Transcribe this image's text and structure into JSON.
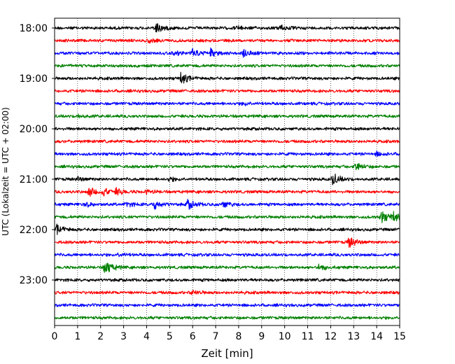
{
  "chart_data": {
    "type": "line",
    "title": "",
    "xlabel": "Zeit  [min]",
    "ylabel": "UTC (Lokalzeit = UTC + 02:00)",
    "xlim": [
      0,
      15
    ],
    "x_ticks": [
      "0",
      "1",
      "2",
      "3",
      "4",
      "5",
      "6",
      "7",
      "8",
      "9",
      "10",
      "11",
      "12",
      "13",
      "14",
      "15"
    ],
    "y_tick_labels": [
      "18:00",
      "19:00",
      "20:00",
      "21:00",
      "22:00",
      "23:00"
    ],
    "grid": "vertical dotted",
    "colors": [
      "#000000",
      "#ff0000",
      "#0000ff",
      "#008000"
    ],
    "traces": [
      {
        "start": "18:00",
        "color": "#000000",
        "events": [
          [
            4.4,
            1.0
          ],
          [
            9.8,
            0.5
          ],
          [
            7.9,
            0.3
          ]
        ]
      },
      {
        "start": "18:15",
        "color": "#ff0000",
        "events": [
          [
            4.1,
            0.3
          ]
        ]
      },
      {
        "start": "18:30",
        "color": "#0000ff",
        "events": [
          [
            6.0,
            0.8
          ],
          [
            6.8,
            0.7
          ],
          [
            8.2,
            0.7
          ],
          [
            5.2,
            0.3
          ]
        ]
      },
      {
        "start": "18:45",
        "color": "#008000",
        "events": []
      },
      {
        "start": "19:00",
        "color": "#000000",
        "events": [
          [
            5.5,
            1.0
          ]
        ]
      },
      {
        "start": "19:15",
        "color": "#ff0000",
        "events": []
      },
      {
        "start": "19:30",
        "color": "#0000ff",
        "events": [
          [
            8.2,
            0.3
          ]
        ]
      },
      {
        "start": "19:45",
        "color": "#008000",
        "events": [
          [
            1.0,
            0.3
          ]
        ]
      },
      {
        "start": "20:00",
        "color": "#000000",
        "events": []
      },
      {
        "start": "20:15",
        "color": "#ff0000",
        "events": []
      },
      {
        "start": "20:30",
        "color": "#0000ff",
        "events": [
          [
            14.0,
            0.3
          ]
        ]
      },
      {
        "start": "20:45",
        "color": "#008000",
        "events": [
          [
            13.1,
            0.7
          ]
        ]
      },
      {
        "start": "21:00",
        "color": "#000000",
        "events": [
          [
            12.1,
            1.0
          ],
          [
            1.0,
            0.3
          ],
          [
            5.0,
            0.3
          ]
        ]
      },
      {
        "start": "21:15",
        "color": "#ff0000",
        "events": [
          [
            1.5,
            0.8
          ],
          [
            2.1,
            0.7
          ],
          [
            2.7,
            0.5
          ],
          [
            4.0,
            0.3
          ]
        ]
      },
      {
        "start": "21:30",
        "color": "#0000ff",
        "events": [
          [
            4.3,
            0.8
          ],
          [
            5.8,
            0.8
          ],
          [
            7.3,
            0.6
          ],
          [
            1.3,
            0.4
          ],
          [
            3.1,
            0.4
          ]
        ]
      },
      {
        "start": "21:45",
        "color": "#008000",
        "events": [
          [
            14.2,
            1.0
          ],
          [
            14.7,
            0.8
          ]
        ]
      },
      {
        "start": "22:00",
        "color": "#000000",
        "events": [
          [
            0.1,
            0.8
          ]
        ]
      },
      {
        "start": "22:15",
        "color": "#ff0000",
        "events": [
          [
            12.8,
            0.9
          ]
        ]
      },
      {
        "start": "22:30",
        "color": "#0000ff",
        "events": [
          [
            2.8,
            0.3
          ]
        ]
      },
      {
        "start": "22:45",
        "color": "#008000",
        "events": [
          [
            2.2,
            1.4
          ],
          [
            11.5,
            0.5
          ]
        ]
      },
      {
        "start": "23:00",
        "color": "#000000",
        "events": []
      },
      {
        "start": "23:15",
        "color": "#ff0000",
        "events": [
          [
            6.0,
            0.4
          ]
        ]
      },
      {
        "start": "23:30",
        "color": "#0000ff",
        "events": []
      },
      {
        "start": "23:45",
        "color": "#008000",
        "events": []
      }
    ]
  }
}
